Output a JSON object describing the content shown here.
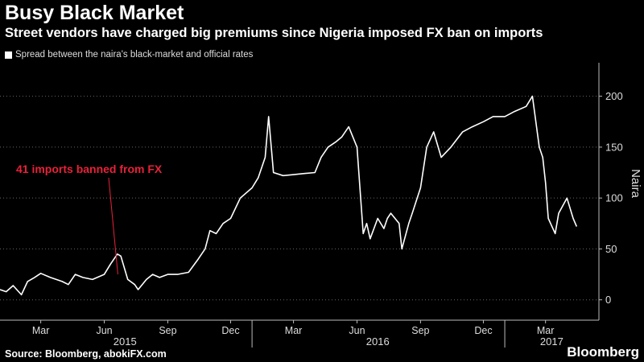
{
  "header": {
    "title": "Busy Black Market",
    "subtitle": "Street vendors have charged big premiums since Nigeria imposed FX ban on imports"
  },
  "legend": {
    "label": "Spread between the naira's black-market and official rates"
  },
  "footer": {
    "source": "Source: Bloomberg, abokiFX.com",
    "brand": "Bloomberg"
  },
  "colors": {
    "background": "#000000",
    "line": "#ffffff",
    "annotation": "#e8213a",
    "axis": "#bbbbbb"
  },
  "chart_data": {
    "type": "line",
    "ylabel": "Naira",
    "ylim": [
      -20,
      225
    ],
    "yticks": [
      0,
      50,
      100,
      150,
      200
    ],
    "xlim": [
      "2015-01-01",
      "2017-05-15"
    ],
    "month_ticks": [
      {
        "date": "2015-03-01",
        "label": "Mar"
      },
      {
        "date": "2015-06-01",
        "label": "Jun"
      },
      {
        "date": "2015-09-01",
        "label": "Sep"
      },
      {
        "date": "2015-12-01",
        "label": "Dec"
      },
      {
        "date": "2016-03-01",
        "label": "Mar"
      },
      {
        "date": "2016-06-01",
        "label": "Jun"
      },
      {
        "date": "2016-09-01",
        "label": "Sep"
      },
      {
        "date": "2016-12-01",
        "label": "Dec"
      },
      {
        "date": "2017-03-01",
        "label": "Mar"
      }
    ],
    "years": [
      {
        "label": "2015",
        "center": "2015-07-01"
      },
      {
        "label": "2016",
        "center": "2016-07-01"
      },
      {
        "label": "2017",
        "center": "2017-03-10"
      }
    ],
    "year_boundaries": [
      "2016-01-01",
      "2017-01-01"
    ],
    "series": [
      {
        "x": [
          "2015-01-01",
          "2015-01-10",
          "2015-01-20",
          "2015-02-01",
          "2015-02-10",
          "2015-02-20",
          "2015-03-01",
          "2015-03-15",
          "2015-04-01",
          "2015-04-10",
          "2015-04-20",
          "2015-05-01",
          "2015-05-15",
          "2015-06-01",
          "2015-06-10",
          "2015-06-20",
          "2015-06-25",
          "2015-07-05",
          "2015-07-15",
          "2015-07-20",
          "2015-08-01",
          "2015-08-10",
          "2015-08-20",
          "2015-09-01",
          "2015-09-15",
          "2015-10-01",
          "2015-10-15",
          "2015-10-25",
          "2015-11-01",
          "2015-11-10",
          "2015-11-20",
          "2015-12-01",
          "2015-12-15",
          "2016-01-01",
          "2016-01-10",
          "2016-01-20",
          "2016-01-25",
          "2016-02-01",
          "2016-02-15",
          "2016-03-01",
          "2016-03-15",
          "2016-04-01",
          "2016-04-10",
          "2016-04-20",
          "2016-05-01",
          "2016-05-10",
          "2016-05-20",
          "2016-06-01",
          "2016-06-10",
          "2016-06-15",
          "2016-06-20",
          "2016-07-01",
          "2016-07-10",
          "2016-07-15",
          "2016-07-20",
          "2016-08-01",
          "2016-08-05",
          "2016-08-15",
          "2016-08-20",
          "2016-09-01",
          "2016-09-10",
          "2016-09-20",
          "2016-10-01",
          "2016-10-15",
          "2016-11-01",
          "2016-11-15",
          "2016-12-01",
          "2016-12-15",
          "2017-01-01",
          "2017-01-15",
          "2017-02-01",
          "2017-02-10",
          "2017-02-20",
          "2017-02-25",
          "2017-03-01",
          "2017-03-05",
          "2017-03-15",
          "2017-03-20",
          "2017-04-01",
          "2017-04-10",
          "2017-04-15"
        ],
        "values": [
          10,
          8,
          14,
          5,
          18,
          22,
          26,
          22,
          18,
          15,
          25,
          22,
          20,
          25,
          35,
          45,
          43,
          20,
          15,
          10,
          20,
          25,
          22,
          25,
          25,
          27,
          40,
          50,
          68,
          65,
          75,
          80,
          100,
          110,
          120,
          140,
          180,
          125,
          122,
          123,
          124,
          125,
          140,
          150,
          155,
          160,
          170,
          150,
          65,
          75,
          60,
          80,
          70,
          80,
          85,
          75,
          50,
          75,
          85,
          110,
          150,
          165,
          140,
          150,
          165,
          170,
          175,
          180,
          180,
          185,
          190,
          200,
          150,
          140,
          115,
          80,
          65,
          85,
          100,
          80,
          72
        ]
      }
    ],
    "annotations": [
      {
        "text": "41 imports banned from FX",
        "x": "2015-06-23",
        "y": 25
      }
    ]
  }
}
